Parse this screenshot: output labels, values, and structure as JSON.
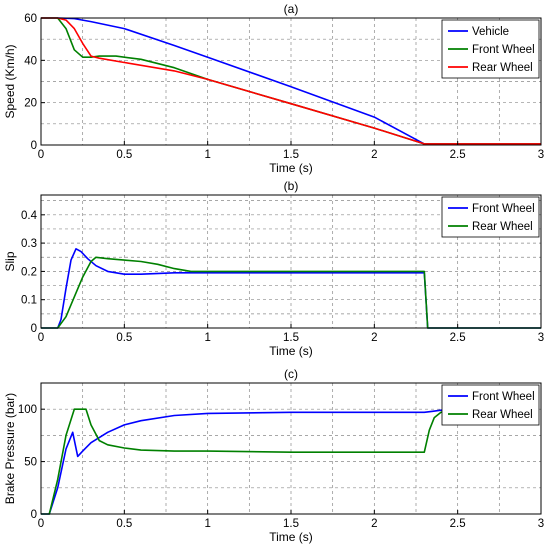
{
  "chart_data": [
    {
      "type": "line",
      "title": "(a)",
      "xlabel": "Time (s)",
      "ylabel": "Speed (Km/h)",
      "xlim": [
        0,
        3
      ],
      "ylim": [
        0,
        60
      ],
      "xticks": [
        0,
        0.5,
        1,
        1.5,
        2,
        2.5,
        3
      ],
      "yticks": [
        0,
        20,
        40,
        60
      ],
      "grid": true,
      "legend_position": "top-right",
      "series": [
        {
          "name": "Vehicle",
          "color": "#0000ff",
          "x": [
            0,
            0.1,
            0.2,
            0.3,
            0.5,
            0.8,
            1.0,
            1.5,
            2.0,
            2.3,
            3.0
          ],
          "y": [
            60,
            60,
            59.7,
            58.3,
            55,
            47,
            41.5,
            27.5,
            13.2,
            0.5,
            0.5
          ]
        },
        {
          "name": "Front Wheel",
          "color": "#008000",
          "x": [
            0,
            0.1,
            0.15,
            0.2,
            0.25,
            0.3,
            0.35,
            0.45,
            0.6,
            0.8,
            1.0,
            1.5,
            2.0,
            2.3,
            3.0
          ],
          "y": [
            60,
            60,
            55,
            45,
            41.5,
            41.5,
            42,
            42,
            40.5,
            36.5,
            31,
            19.5,
            8,
            0.5,
            0.5
          ]
        },
        {
          "name": "Rear Wheel",
          "color": "#ff0000",
          "x": [
            0,
            0.1,
            0.15,
            0.2,
            0.25,
            0.3,
            0.35,
            0.5,
            0.8,
            1.0,
            1.5,
            2.0,
            2.3,
            3.0
          ],
          "y": [
            60,
            60,
            59,
            55,
            48,
            42,
            41,
            39,
            35,
            31,
            19.5,
            8,
            0.5,
            0.5
          ]
        }
      ]
    },
    {
      "type": "line",
      "title": "(b)",
      "xlabel": "Time (s)",
      "ylabel": "Slip",
      "xlim": [
        0,
        3
      ],
      "ylim": [
        0,
        0.47
      ],
      "xticks": [
        0,
        0.5,
        1,
        1.5,
        2,
        2.5,
        3
      ],
      "yticks": [
        0,
        0.1,
        0.2,
        0.3,
        0.4
      ],
      "ytick_labels": [
        "0",
        "0.1",
        "0.2",
        "0.3",
        "0.4"
      ],
      "grid": true,
      "legend_position": "top-right",
      "series": [
        {
          "name": "Front Wheel",
          "color": "#0000ff",
          "x": [
            0,
            0.1,
            0.12,
            0.15,
            0.18,
            0.21,
            0.24,
            0.28,
            0.33,
            0.4,
            0.5,
            0.6,
            0.8,
            1.0,
            2.0,
            2.3,
            2.32,
            3.0
          ],
          "y": [
            0,
            0,
            0.03,
            0.14,
            0.24,
            0.28,
            0.27,
            0.245,
            0.22,
            0.2,
            0.19,
            0.19,
            0.195,
            0.195,
            0.195,
            0.195,
            0,
            0
          ]
        },
        {
          "name": "Rear Wheel",
          "color": "#008000",
          "x": [
            0,
            0.1,
            0.15,
            0.2,
            0.25,
            0.3,
            0.33,
            0.4,
            0.5,
            0.6,
            0.7,
            0.8,
            0.9,
            1.0,
            2.0,
            2.3,
            2.32,
            3.0
          ],
          "y": [
            0,
            0,
            0.04,
            0.11,
            0.18,
            0.235,
            0.25,
            0.245,
            0.24,
            0.235,
            0.225,
            0.21,
            0.2,
            0.2,
            0.2,
            0.2,
            0,
            0
          ]
        }
      ]
    },
    {
      "type": "line",
      "title": "(c)",
      "xlabel": "Time (s)",
      "ylabel": "Brake Pressure (bar)",
      "xlim": [
        0,
        3
      ],
      "ylim": [
        0,
        125
      ],
      "xticks": [
        0,
        0.5,
        1,
        1.5,
        2,
        2.5,
        3
      ],
      "yticks": [
        0,
        50,
        100
      ],
      "grid": true,
      "legend_position": "top-right",
      "series": [
        {
          "name": "Front Wheel",
          "color": "#0000ff",
          "x": [
            0,
            0.05,
            0.1,
            0.15,
            0.19,
            0.22,
            0.25,
            0.3,
            0.4,
            0.5,
            0.6,
            0.8,
            1.0,
            1.5,
            2.0,
            2.3,
            2.35,
            2.4,
            2.45
          ],
          "y": [
            0,
            0,
            25,
            62,
            78,
            55,
            60,
            68,
            78,
            85,
            89,
            94,
            96,
            97,
            97,
            97,
            98,
            99,
            99
          ]
        },
        {
          "name": "Rear Wheel",
          "color": "#008000",
          "x": [
            0,
            0.05,
            0.1,
            0.15,
            0.2,
            0.22,
            0.27,
            0.3,
            0.35,
            0.4,
            0.5,
            0.6,
            0.8,
            1.0,
            1.5,
            2.0,
            2.3,
            2.33,
            2.36,
            2.4,
            2.45
          ],
          "y": [
            0,
            0,
            33,
            75,
            100,
            100,
            100,
            85,
            70,
            66,
            63,
            61,
            60,
            60,
            59,
            59,
            59,
            80,
            92,
            97,
            99
          ]
        }
      ]
    }
  ]
}
